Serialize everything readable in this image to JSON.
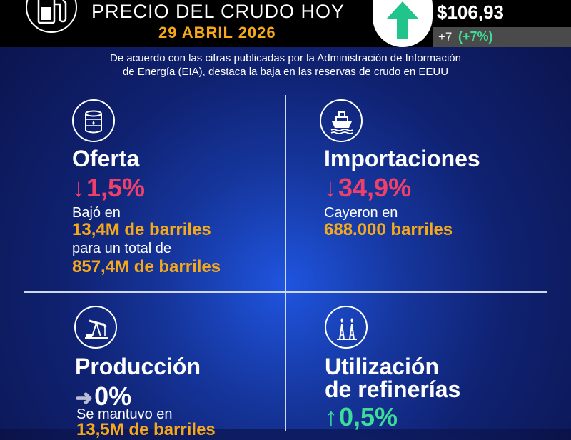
{
  "header": {
    "title": "PRECIO DEL CRUDO HOY",
    "date": "29 ABRIL 2026",
    "price": "$106,93",
    "change_abs": "+7",
    "change_pct": "(+7%)",
    "pump_icon": "fuel-pump-icon",
    "trend_icon": "arrow-up-icon"
  },
  "intro": {
    "line1": "De acuerdo con las cifras publicadas por la Administración de Información",
    "line2": "de Energía (EIA), destaca la baja en las reservas de crudo en EEUU"
  },
  "cards": {
    "oferta": {
      "icon": "oil-barrel-icon",
      "title": "Oferta",
      "arrow": "↓",
      "metric": "1,5%",
      "text1": "Bajó en",
      "highlight1": "13,4M de barriles",
      "text2": "para un total de",
      "highlight2": "857,4M de barriles"
    },
    "importaciones": {
      "icon": "ship-icon",
      "title": "Importaciones",
      "arrow": "↓",
      "metric": "34,9%",
      "text1": "Cayeron en",
      "highlight1": "688.000 barriles"
    },
    "produccion": {
      "icon": "oil-pumpjack-icon",
      "title": "Producción",
      "arrow": "➜",
      "metric": "0%",
      "text1": "Se mantuvo en",
      "highlight1": "13,5M de barriles"
    },
    "refinerias": {
      "icon": "refinery-icon",
      "title_line1": "Utilización",
      "title_line2": "de refinerías",
      "arrow": "↑",
      "metric": "0,5%"
    }
  },
  "colors": {
    "accent_orange": "#f6a81b",
    "up_green": "#3ddc97",
    "down_red": "#ef3f6b",
    "background_blue": "#16379f"
  }
}
